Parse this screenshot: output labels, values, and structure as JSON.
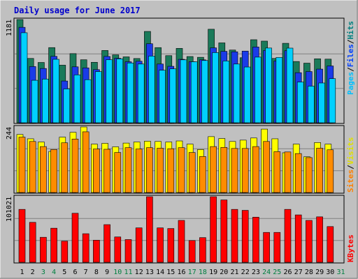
{
  "chart_data": {
    "type": "bar",
    "title": "Daily usage for June 2017",
    "categories": [
      "1",
      "2",
      "3",
      "4",
      "5",
      "6",
      "7",
      "8",
      "9",
      "10",
      "11",
      "12",
      "13",
      "14",
      "15",
      "16",
      "17",
      "18",
      "19",
      "20",
      "21",
      "22",
      "23",
      "24",
      "25",
      "26",
      "27",
      "28",
      "29",
      "30",
      "31"
    ],
    "weekend_days": [
      "3",
      "4",
      "10",
      "11",
      "17",
      "18",
      "24",
      "25",
      "31"
    ],
    "panels": [
      {
        "y_max_label": "1181",
        "legend": [
          {
            "text": "Pages",
            "color": "#00c0ff"
          },
          {
            "text": "/",
            "color": "#000000"
          },
          {
            "text": "Files",
            "color": "#0040ff"
          },
          {
            "text": "/",
            "color": "#000000"
          },
          {
            "text": "Hits",
            "color": "#008080"
          }
        ],
        "series": [
          {
            "name": "Hits",
            "color": "#1a7a5a",
            "values": [
              1181,
              736,
              690,
              860,
              659,
              791,
              721,
              692,
              827,
              777,
              754,
              735,
              1045,
              860,
              768,
              851,
              758,
              749,
              1070,
              914,
              832,
              744,
              950,
              934,
              736,
              909,
              701,
              682,
              732,
              728,
              null
            ]
          },
          {
            "name": "Files",
            "color": "#1a3be8",
            "values": [
              1092,
              643,
              621,
              760,
              478,
              640,
              628,
              608,
              759,
              738,
              698,
              704,
              904,
              672,
              646,
              726,
              699,
              720,
              857,
              817,
              812,
              820,
              867,
              827,
              708,
              824,
              573,
              586,
              614,
              650,
              null
            ]
          },
          {
            "name": "Pages",
            "color": "#00d0ff",
            "values": [
              1030,
              486,
              500,
              726,
              387,
              548,
              493,
              585,
              721,
              731,
              684,
              672,
              763,
              601,
              617,
              720,
              698,
              712,
              803,
              707,
              672,
              638,
              751,
              855,
              747,
              854,
              466,
              419,
              455,
              505,
              null
            ]
          }
        ]
      },
      {
        "y_max_label": "244",
        "legend": [
          {
            "text": "Sites",
            "color": "#ff8000"
          },
          {
            "text": "/",
            "color": "#000000"
          },
          {
            "text": "Visits",
            "color": "#e0e000"
          }
        ],
        "series": [
          {
            "name": "Visits",
            "color": "#ffff00",
            "values": [
              216,
              200,
              188,
              153,
              206,
              224,
              244,
              180,
              183,
              170,
              184,
              188,
              191,
              190,
              188,
              192,
              180,
              160,
              208,
              201,
              190,
              195,
              203,
              236,
              200,
              148,
              180,
              133,
              186,
              180,
              null
            ]
          },
          {
            "name": "Sites",
            "color": "#ff8c00",
            "values": [
              206,
              190,
              171,
              160,
              185,
              199,
              226,
              162,
              161,
              149,
              167,
              162,
              167,
              165,
              163,
              167,
              149,
              134,
              171,
              168,
              164,
              164,
              171,
              190,
              152,
              151,
              145,
              130,
              165,
              159,
              null
            ]
          }
        ]
      },
      {
        "y_max_label": "101021",
        "legend": [
          {
            "text": "KBytes",
            "color": "#ff0000"
          }
        ],
        "series": [
          {
            "name": "KBytes",
            "color": "#ff0000",
            "values": [
              81500,
              61500,
              38500,
              52500,
              32500,
              75500,
              44000,
              34000,
              58000,
              39000,
              35000,
              53000,
              101021,
              53000,
              52000,
              64500,
              33500,
              38000,
              101021,
              96000,
              81500,
              80000,
              69500,
              46000,
              46000,
              81500,
              73000,
              64500,
              70000,
              55000,
              null
            ]
          }
        ]
      }
    ]
  }
}
